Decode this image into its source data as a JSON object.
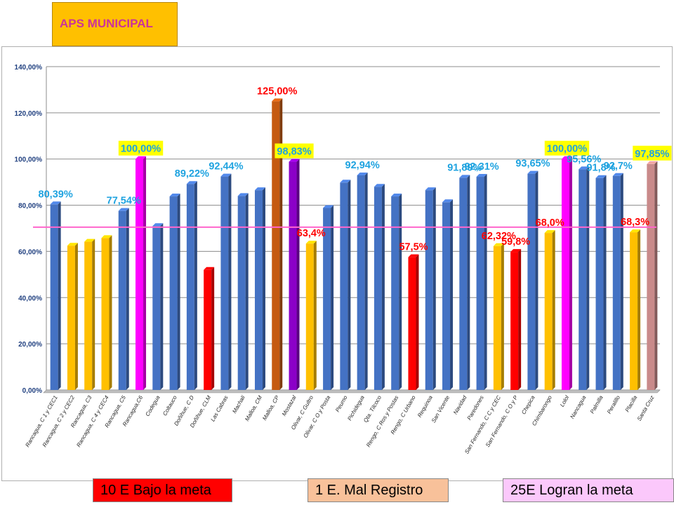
{
  "header": {
    "title": "APS MUNICIPAL"
  },
  "legend": {
    "below": "10 E Bajo la meta",
    "bad_record": "1 E. Mal Registro",
    "reached": "25E Logran la meta"
  },
  "colors": {
    "blue": "#4472c4",
    "yellow": "#ffc000",
    "magenta": "#ff00ff",
    "red": "#ff0000",
    "orange": "#c55a11",
    "purple": "#8b00c8",
    "rose": "#c98a8a",
    "meta_line": "#ff66cc",
    "label_blue": "#1fa3e0",
    "label_red": "#ff0000",
    "label_highlight": "#ffff00"
  },
  "chart_data": {
    "type": "bar",
    "ylim": [
      0,
      140
    ],
    "yticks": [
      "0,00%",
      "20,00%",
      "40,00%",
      "60,00%",
      "80,00%",
      "100,00%",
      "120,00%",
      "140,00%"
    ],
    "meta_line": 70.5,
    "grid": true,
    "categories": [
      "Rancagua, C 1 y CEC1",
      "Rancagua, C 2 y CEC2",
      "Rancagua, C3",
      "Rancagua, C 4 y CEC4",
      "Rancagua, C5",
      "Rancagua,C6",
      "Codegua",
      "Coltauco",
      "Doñihue, C D",
      "Doñihue, CLM",
      "Las Cabras",
      "Machali",
      "Malloa, CM",
      "Malloa, CP",
      "Mostazal",
      "Olivar, C Gultro",
      "Olivar, C O y Posta",
      "Peumo",
      "Pichidegua",
      "Qta. Tilcoco",
      "Rengo, C Ros y Postas",
      "Rengo, C Urbano",
      "Requinoa",
      "San Vicente",
      "Navidad",
      "Paredones",
      "San Fernando, C C y CEC",
      "San Fernando, C O y P",
      "Chepica",
      "Chimbarongo",
      "Lolol",
      "Nancagua",
      "Palmilla",
      "Peralillo",
      "Placilla",
      "Santa Cruz"
    ],
    "values": [
      80.39,
      62.5,
      64.2,
      65.8,
      77.54,
      100.0,
      71.0,
      83.8,
      89.22,
      52.0,
      92.44,
      84.0,
      86.5,
      125.0,
      98.83,
      63.4,
      78.8,
      89.8,
      92.94,
      88.0,
      83.8,
      57.5,
      86.5,
      81.3,
      91.89,
      92.31,
      62.32,
      59.8,
      93.65,
      68.0,
      100.0,
      95.56,
      91.8,
      92.7,
      68.3,
      97.85
    ],
    "bar_colors": [
      "blue",
      "yellow",
      "yellow",
      "yellow",
      "blue",
      "magenta",
      "blue",
      "blue",
      "blue",
      "red",
      "blue",
      "blue",
      "blue",
      "orange",
      "purple",
      "yellow",
      "blue",
      "blue",
      "blue",
      "blue",
      "blue",
      "red",
      "blue",
      "blue",
      "blue",
      "blue",
      "yellow",
      "red",
      "blue",
      "yellow",
      "magenta",
      "blue",
      "blue",
      "blue",
      "yellow",
      "rose"
    ],
    "data_labels": [
      {
        "index": 0,
        "text": "80,39%",
        "style": "blue"
      },
      {
        "index": 4,
        "text": "77,54%",
        "style": "blue"
      },
      {
        "index": 5,
        "text": "100,00%",
        "style": "highlight"
      },
      {
        "index": 8,
        "text": "89,22%",
        "style": "blue"
      },
      {
        "index": 10,
        "text": "92,44%",
        "style": "blue"
      },
      {
        "index": 13,
        "text": "125,00%",
        "style": "red"
      },
      {
        "index": 14,
        "text": "98,83%",
        "style": "highlight"
      },
      {
        "index": 15,
        "text": "63,4%",
        "style": "red"
      },
      {
        "index": 18,
        "text": "92,94%",
        "style": "blue"
      },
      {
        "index": 21,
        "text": "57,5%",
        "style": "red"
      },
      {
        "index": 24,
        "text": "91,89%",
        "style": "blue"
      },
      {
        "index": 25,
        "text": "92,31%",
        "style": "blue"
      },
      {
        "index": 26,
        "text": "62,32%",
        "style": "red"
      },
      {
        "index": 27,
        "text": "59,8%",
        "style": "red"
      },
      {
        "index": 28,
        "text": "93,65%",
        "style": "blue"
      },
      {
        "index": 29,
        "text": "68,0%",
        "style": "red"
      },
      {
        "index": 30,
        "text": "100,00%",
        "style": "highlight"
      },
      {
        "index": 31,
        "text": "95,56%",
        "style": "blue"
      },
      {
        "index": 32,
        "text": "91,8%",
        "style": "blue"
      },
      {
        "index": 33,
        "text": "92,7%",
        "style": "blue"
      },
      {
        "index": 34,
        "text": "68,3%",
        "style": "red"
      },
      {
        "index": 35,
        "text": "97,85%",
        "style": "highlight"
      }
    ]
  }
}
